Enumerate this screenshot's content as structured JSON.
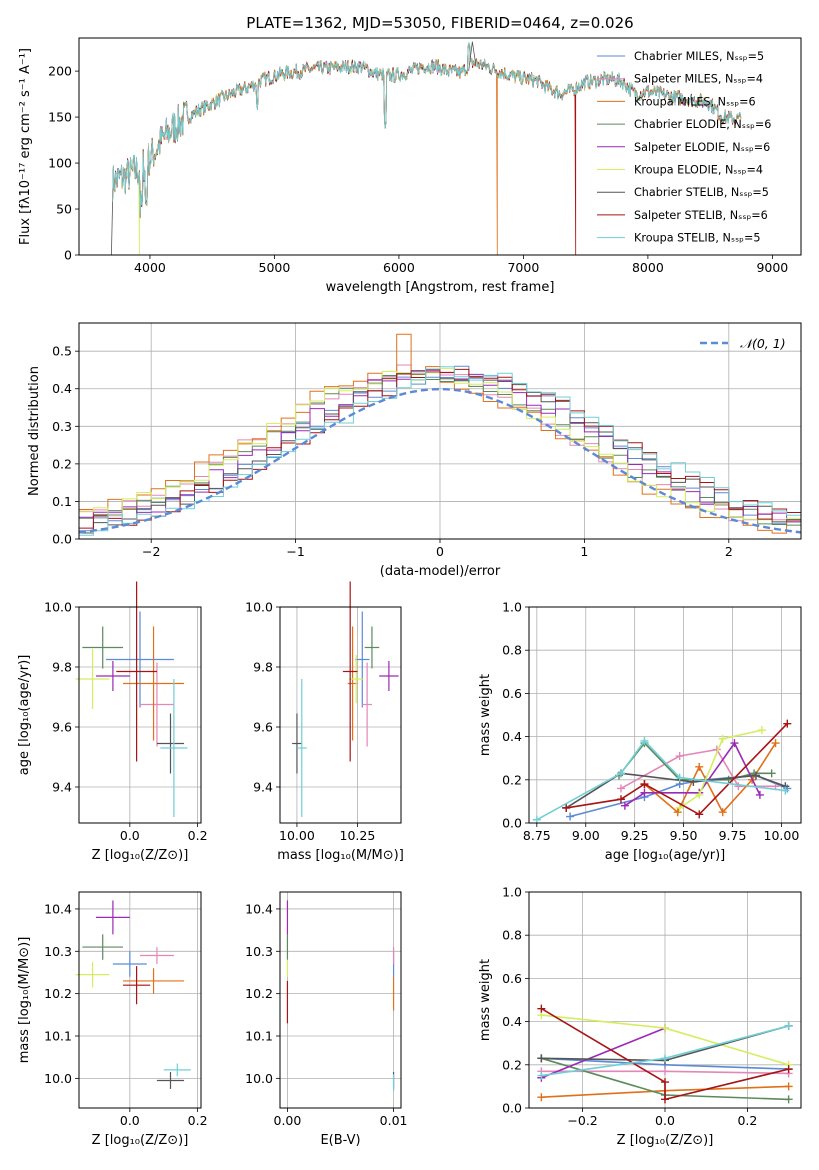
{
  "colors": {
    "c0": "#5b8ad6",
    "c1": "#e586b8",
    "c2": "#e0701a",
    "c3": "#5c8a5c",
    "c4": "#9b2ab5",
    "c5": "#d3ee5f",
    "c6": "#555555",
    "c7": "#a81414",
    "c8": "#6fcfd6",
    "gauss": "#5b8ad6",
    "grid": "#b0b0b0"
  },
  "chart_data": [
    {
      "id": "spectrum",
      "type": "line",
      "title": "PLATE=1362, MJD=53050, FIBERID=0464, z=0.026",
      "xlabel": "wavelength [Angstrom, rest frame]",
      "ylabel": "Flux [fλ10⁻¹⁷ erg cm⁻² s⁻¹ A⁻¹]",
      "xlim": [
        3430,
        9230
      ],
      "ylim": [
        0,
        236
      ],
      "xticks": [
        4000,
        5000,
        6000,
        7000,
        8000,
        9000
      ],
      "yticks": [
        0,
        50,
        100,
        150,
        200
      ],
      "grid": false,
      "legend_position": "upper right",
      "legend": [
        "Chabrier MILES, N_SSP=5",
        "Salpeter MILES, N_SSP=4",
        "Kroupa MILES, N_SSP=6",
        "Chabrier ELODIE, N_SSP=6",
        "Salpeter ELODIE, N_SSP=6",
        "Kroupa ELODIE, N_SSP=4",
        "Chabrier STELIB, N_SSP=5",
        "Salpeter STELIB, N_SSP=6",
        "Kroupa STELIB, N_SSP=5"
      ],
      "continuum_x": [
        3700,
        3800,
        3900,
        4000,
        4100,
        4200,
        4300,
        4400,
        4500,
        4600,
        4700,
        4800,
        4900,
        5000,
        5100,
        5200,
        5300,
        5400,
        5500,
        5600,
        5700,
        5800,
        5900,
        6000,
        6100,
        6200,
        6300,
        6400,
        6500,
        6600,
        6700,
        6800,
        6900,
        7000,
        7100,
        7200,
        7300,
        7400,
        7500,
        7600,
        7700,
        7800,
        7900,
        8000,
        8100,
        8200,
        8300,
        8400,
        8500,
        8600,
        8700
      ],
      "continuum_y": [
        80,
        85,
        92,
        105,
        125,
        140,
        150,
        158,
        165,
        172,
        178,
        183,
        190,
        195,
        198,
        200,
        202,
        203,
        204,
        205,
        205,
        198,
        195,
        196,
        200,
        206,
        205,
        200,
        198,
        210,
        205,
        200,
        195,
        192,
        190,
        182,
        175,
        180,
        188,
        190,
        192,
        188,
        175,
        178,
        175,
        172,
        170,
        168,
        165,
        150,
        148
      ],
      "dropouts": [
        {
          "series": 6,
          "x": 3690
        },
        {
          "series": 5,
          "x": 3915
        },
        {
          "series": 2,
          "x": 6790
        },
        {
          "series": 7,
          "x": 7420
        }
      ]
    },
    {
      "id": "residuals",
      "type": "step-histogram",
      "xlabel": "(data-model)/error",
      "ylabel": "Normed distribution",
      "xlim": [
        -2.5,
        2.5
      ],
      "ylim": [
        0,
        0.575
      ],
      "xticks": [
        -2,
        -1,
        0,
        1,
        2
      ],
      "yticks": [
        0.0,
        0.1,
        0.2,
        0.3,
        0.4,
        0.5
      ],
      "bin_width": 0.1,
      "grid": true,
      "legend_position": "upper right",
      "gaussian_label": "𝒩(0, 1)",
      "shifts": [
        0.06,
        -0.18,
        -0.22,
        -0.1,
        0.0,
        -0.15,
        0.1,
        0.12,
        0.2
      ],
      "peak": {
        "series": 2,
        "x": -0.25,
        "y": 0.545
      }
    },
    {
      "id": "age_vs_Z",
      "type": "errorbar",
      "xlabel": "Z [log₁₀(Z/Z⊙)]",
      "ylabel": "age  [log₁₀(age/yr)]",
      "xlim": [
        -0.15,
        0.21
      ],
      "ylim": [
        9.28,
        10.0
      ],
      "xticks": [
        0.0,
        0.2
      ],
      "yticks": [
        9.4,
        9.6,
        9.8,
        10.0
      ],
      "grid": true,
      "points": [
        {
          "s": 0,
          "x": 0.03,
          "xe": 0.1,
          "y": 9.825,
          "ye": 0.16
        },
        {
          "s": 1,
          "x": 0.08,
          "xe": 0.05,
          "y": 9.675,
          "ye": 0.14
        },
        {
          "s": 2,
          "x": 0.07,
          "xe": 0.09,
          "y": 9.745,
          "ye": 0.19
        },
        {
          "s": 3,
          "x": -0.08,
          "xe": 0.06,
          "y": 9.865,
          "ye": 0.07
        },
        {
          "s": 4,
          "x": -0.05,
          "xe": 0.05,
          "y": 9.77,
          "ye": 0.05
        },
        {
          "s": 5,
          "x": -0.11,
          "xe": 0.05,
          "y": 9.76,
          "ye": 0.1
        },
        {
          "s": 6,
          "x": 0.12,
          "xe": 0.04,
          "y": 9.545,
          "ye": 0.1
        },
        {
          "s": 7,
          "x": 0.02,
          "xe": 0.06,
          "y": 9.785,
          "ye": 0.3
        },
        {
          "s": 8,
          "x": 0.13,
          "xe": 0.04,
          "y": 9.53,
          "ye": 0.23
        }
      ]
    },
    {
      "id": "age_vs_mass",
      "type": "errorbar",
      "xlabel": "mass [log₁₀(M/M⊙)]",
      "ylabel": "",
      "xlim": [
        9.93,
        10.43
      ],
      "ylim": [
        9.28,
        10.0
      ],
      "xticks": [
        10.0,
        10.25
      ],
      "yticks": [
        9.4,
        9.6,
        9.8,
        10.0
      ],
      "grid": true,
      "points": [
        {
          "s": 0,
          "x": 10.27,
          "xe": 0.03,
          "y": 9.825,
          "ye": 0.16
        },
        {
          "s": 1,
          "x": 10.29,
          "xe": 0.02,
          "y": 9.675,
          "ye": 0.14
        },
        {
          "s": 2,
          "x": 10.23,
          "xe": 0.02,
          "y": 9.745,
          "ye": 0.19
        },
        {
          "s": 3,
          "x": 10.31,
          "xe": 0.03,
          "y": 9.865,
          "ye": 0.07
        },
        {
          "s": 4,
          "x": 10.38,
          "xe": 0.04,
          "y": 9.77,
          "ye": 0.05
        },
        {
          "s": 5,
          "x": 10.245,
          "xe": 0.03,
          "y": 9.76,
          "ye": 0.08
        },
        {
          "s": 6,
          "x": 10.0,
          "xe": 0.02,
          "y": 9.545,
          "ye": 0.1
        },
        {
          "s": 7,
          "x": 10.22,
          "xe": 0.03,
          "y": 9.785,
          "ye": 0.3
        },
        {
          "s": 8,
          "x": 10.02,
          "xe": 0.02,
          "y": 9.53,
          "ye": 0.23
        }
      ]
    },
    {
      "id": "weight_vs_age",
      "type": "line",
      "xlabel": "age  [log₁₀(age/yr)]",
      "ylabel": "mass weight",
      "xlim": [
        8.71,
        10.1
      ],
      "ylim": [
        0,
        1.0
      ],
      "xticks": [
        8.75,
        9.0,
        9.25,
        9.5,
        9.75,
        10.0
      ],
      "yticks": [
        0.0,
        0.2,
        0.4,
        0.6,
        0.8,
        1.0
      ],
      "grid": true,
      "series": [
        {
          "s": 0,
          "x": [
            8.92,
            9.3,
            9.48,
            9.61,
            9.87,
            10.03
          ],
          "y": [
            0.03,
            0.12,
            0.18,
            0.2,
            0.22,
            0.16
          ]
        },
        {
          "s": 1,
          "x": [
            9.18,
            9.48,
            9.67,
            9.78,
            9.97
          ],
          "y": [
            0.16,
            0.31,
            0.34,
            0.17,
            0.17
          ]
        },
        {
          "s": 2,
          "x": [
            9.3,
            9.47,
            9.58,
            9.7,
            9.85,
            9.97
          ],
          "y": [
            0.18,
            0.05,
            0.26,
            0.05,
            0.2,
            0.37
          ]
        },
        {
          "s": 3,
          "x": [
            9.17,
            9.3,
            9.48,
            9.73,
            9.86,
            9.95
          ],
          "y": [
            0.22,
            0.37,
            0.2,
            0.2,
            0.23,
            0.23
          ]
        },
        {
          "s": 4,
          "x": [
            9.2,
            9.3,
            9.58,
            9.76,
            9.89
          ],
          "y": [
            0.08,
            0.14,
            0.14,
            0.37,
            0.13
          ]
        },
        {
          "s": 5,
          "x": [
            9.48,
            9.58,
            9.7,
            9.9
          ],
          "y": [
            0.07,
            0.13,
            0.39,
            0.43
          ]
        },
        {
          "s": 6,
          "x": [
            8.9,
            9.18,
            9.55,
            9.87,
            10.02
          ],
          "y": [
            0.07,
            0.23,
            0.19,
            0.22,
            0.17
          ]
        },
        {
          "s": 7,
          "x": [
            8.9,
            9.18,
            9.3,
            9.58,
            10.03
          ],
          "y": [
            0.07,
            0.11,
            0.18,
            0.04,
            0.46
          ]
        },
        {
          "s": 8,
          "x": [
            8.75,
            9.18,
            9.3,
            9.48,
            10.02
          ],
          "y": [
            0.015,
            0.23,
            0.38,
            0.21,
            0.15
          ]
        }
      ]
    },
    {
      "id": "mass_vs_Z",
      "type": "errorbar",
      "xlabel": "Z [log₁₀(Z/Z⊙)]",
      "ylabel": "mass [log₁₀(M/M⊙)]",
      "xlim": [
        -0.15,
        0.21
      ],
      "ylim": [
        9.93,
        10.44
      ],
      "xticks": [
        0.0,
        0.2
      ],
      "yticks": [
        10.0,
        10.1,
        10.2,
        10.3,
        10.4
      ],
      "grid": true,
      "points": [
        {
          "s": 0,
          "x": 0.0,
          "xe": 0.05,
          "y": 10.27,
          "ye": 0.03
        },
        {
          "s": 1,
          "x": 0.08,
          "xe": 0.05,
          "y": 10.29,
          "ye": 0.02
        },
        {
          "s": 2,
          "x": 0.07,
          "xe": 0.09,
          "y": 10.23,
          "ye": 0.03
        },
        {
          "s": 3,
          "x": -0.08,
          "xe": 0.06,
          "y": 10.31,
          "ye": 0.03
        },
        {
          "s": 4,
          "x": -0.05,
          "xe": 0.05,
          "y": 10.38,
          "ye": 0.04
        },
        {
          "s": 5,
          "x": -0.11,
          "xe": 0.05,
          "y": 10.245,
          "ye": 0.03
        },
        {
          "s": 6,
          "x": 0.12,
          "xe": 0.04,
          "y": 9.995,
          "ye": 0.02
        },
        {
          "s": 7,
          "x": 0.02,
          "xe": 0.04,
          "y": 10.22,
          "ye": 0.045
        },
        {
          "s": 8,
          "x": 0.14,
          "xe": 0.04,
          "y": 10.02,
          "ye": 0.015
        }
      ]
    },
    {
      "id": "mass_vs_ebv",
      "type": "errorbar",
      "xlabel": "E(B-V)",
      "ylabel": "",
      "xlim": [
        -0.0007,
        0.0107
      ],
      "ylim": [
        9.93,
        10.44
      ],
      "xticks": [
        0.0,
        0.01
      ],
      "yticks": [
        10.0,
        10.1,
        10.2,
        10.3,
        10.4
      ],
      "grid": true,
      "points": [
        {
          "s": 0,
          "x": 0.01,
          "xe": 0,
          "y": 10.27,
          "ye": 0.03
        },
        {
          "s": 1,
          "x": 0.01,
          "xe": 0,
          "y": 10.29,
          "ye": 0.02
        },
        {
          "s": 2,
          "x": 0.01,
          "xe": 0,
          "y": 10.2,
          "ye": 0.04
        },
        {
          "s": 3,
          "x": 0.0,
          "xe": 0,
          "y": 10.31,
          "ye": 0.03
        },
        {
          "s": 4,
          "x": 0.0,
          "xe": 0,
          "y": 10.38,
          "ye": 0.04
        },
        {
          "s": 5,
          "x": 0.0,
          "xe": 0,
          "y": 10.26,
          "ye": 0.02
        },
        {
          "s": 6,
          "x": 0.01,
          "xe": 0,
          "y": 9.995,
          "ye": 0.02
        },
        {
          "s": 7,
          "x": 0.0,
          "xe": 0,
          "y": 10.18,
          "ye": 0.05
        },
        {
          "s": 8,
          "x": 0.01,
          "xe": 0,
          "y": 9.99,
          "ye": 0.02
        }
      ]
    },
    {
      "id": "weight_vs_Z",
      "type": "line",
      "xlabel": "Z [log₁₀(Z/Z⊙)]",
      "ylabel": "mass weight",
      "xlim": [
        -0.33,
        0.33
      ],
      "ylim": [
        0,
        1.0
      ],
      "xticks": [
        -0.2,
        0.0,
        0.2
      ],
      "yticks": [
        0.0,
        0.2,
        0.4,
        0.6,
        0.8,
        1.0
      ],
      "grid": true,
      "series": [
        {
          "s": 0,
          "x": [
            -0.3,
            0.0,
            0.3
          ],
          "y": [
            0.23,
            0.2,
            0.18
          ]
        },
        {
          "s": 1,
          "x": [
            -0.3,
            0.0,
            0.3
          ],
          "y": [
            0.17,
            0.17,
            0.16
          ]
        },
        {
          "s": 2,
          "x": [
            -0.3,
            0.0,
            0.3
          ],
          "y": [
            0.05,
            0.08,
            0.1
          ]
        },
        {
          "s": 3,
          "x": [
            -0.3,
            0.0,
            0.3
          ],
          "y": [
            0.23,
            0.06,
            0.04
          ]
        },
        {
          "s": 4,
          "x": [
            -0.3,
            0.0
          ],
          "y": [
            0.14,
            0.37
          ]
        },
        {
          "s": 5,
          "x": [
            -0.3,
            0.0,
            0.3
          ],
          "y": [
            0.43,
            0.37,
            0.2
          ]
        },
        {
          "s": 6,
          "x": [
            -0.3,
            0.0,
            0.3
          ],
          "y": [
            0.23,
            0.22,
            0.38
          ]
        },
        {
          "s": 7,
          "x": [
            -0.3,
            0.0,
            0.0,
            0.3
          ],
          "y": [
            0.46,
            0.12,
            0.04,
            0.18
          ]
        },
        {
          "s": 8,
          "x": [
            -0.3,
            0.0,
            0.3
          ],
          "y": [
            0.15,
            0.23,
            0.38
          ]
        }
      ]
    }
  ]
}
